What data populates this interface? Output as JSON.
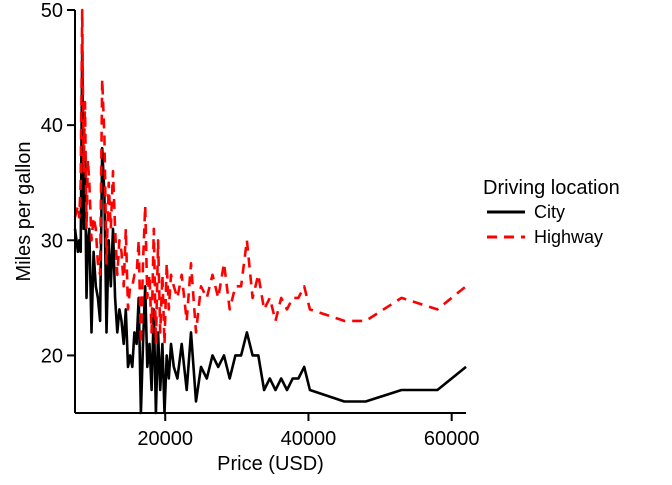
{
  "chart_data": {
    "type": "line",
    "title": "",
    "xlabel": "Price (USD)",
    "ylabel": "Miles per gallon",
    "xlim": [
      7400,
      62000
    ],
    "ylim": [
      15,
      50
    ],
    "x_ticks": [
      20000,
      40000,
      60000
    ],
    "y_ticks": [
      20,
      30,
      40,
      50
    ],
    "grid": false,
    "legend": {
      "title": "Driving location",
      "placement": "right"
    },
    "x": [
      7400,
      7800,
      8000,
      8200,
      8400,
      8600,
      8800,
      9000,
      9200,
      9400,
      9700,
      10000,
      10300,
      10600,
      10900,
      11200,
      11500,
      11800,
      12100,
      12400,
      12700,
      13000,
      13300,
      13600,
      13900,
      14200,
      14500,
      14800,
      15100,
      15400,
      15700,
      16000,
      16300,
      16600,
      16900,
      17200,
      17500,
      17800,
      18100,
      18400,
      18700,
      19000,
      19300,
      19600,
      19900,
      20200,
      20500,
      20800,
      21200,
      21700,
      22300,
      23000,
      23600,
      24300,
      25000,
      25800,
      26600,
      27400,
      28200,
      29000,
      29800,
      30600,
      31400,
      32200,
      33000,
      33800,
      34600,
      35400,
      36200,
      37000,
      37800,
      38600,
      39400,
      40200,
      45000,
      48000,
      53000,
      58000,
      62000
    ],
    "series": [
      {
        "name": "City",
        "color": "#000000",
        "dash": "solid",
        "values": [
          31,
          29,
          30,
          29,
          47,
          31,
          37,
          25,
          30,
          31,
          22,
          29,
          26,
          25,
          23,
          38,
          34,
          22,
          30,
          26,
          31,
          25,
          22,
          24,
          23,
          21,
          24,
          19,
          20,
          19,
          22,
          21,
          25,
          15,
          21,
          26,
          19,
          21,
          17,
          24,
          15,
          22,
          17,
          21,
          15,
          20,
          18,
          21,
          19,
          18,
          21,
          17,
          22,
          16,
          19,
          18,
          20,
          19,
          20,
          18,
          20,
          20,
          22,
          20,
          20,
          17,
          18,
          17,
          18,
          17,
          18,
          18,
          19,
          17,
          16,
          16,
          17,
          17,
          19
        ]
      },
      {
        "name": "Highway",
        "color": "#ff0000",
        "dash": "dashed",
        "values": [
          32,
          33,
          32,
          35,
          50,
          36,
          42,
          31,
          37,
          35,
          30,
          32,
          31,
          28,
          27,
          44,
          39,
          28,
          35,
          31,
          36,
          31,
          27,
          30,
          29,
          26,
          31,
          24,
          26,
          26,
          27,
          27,
          30,
          21,
          28,
          33,
          25,
          27,
          22,
          31,
          21,
          30,
          22,
          27,
          21,
          28,
          24,
          27,
          26,
          25,
          27,
          23,
          28,
          22,
          26,
          25,
          27,
          25,
          28,
          24,
          26,
          26,
          30,
          25,
          27,
          24,
          25,
          23,
          25,
          24,
          25,
          25,
          26,
          24,
          23,
          23,
          25,
          24,
          26
        ]
      }
    ]
  }
}
